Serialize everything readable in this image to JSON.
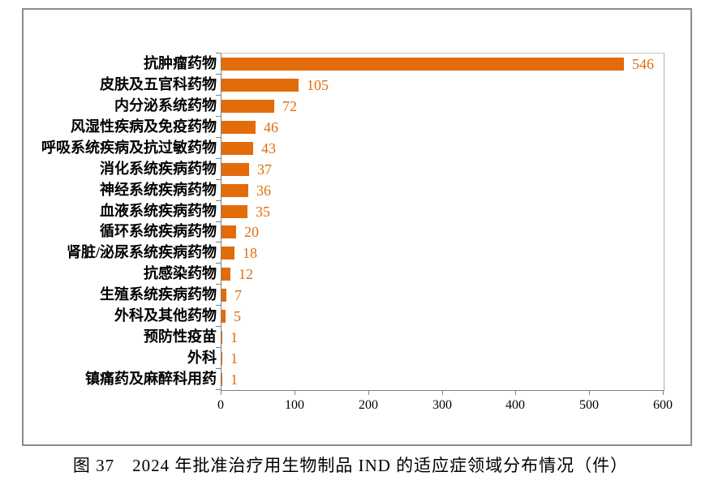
{
  "figure": {
    "caption": "图 37　2024 年批准治疗用生物制品 IND 的适应症领域分布情况（件）"
  },
  "chart_data": {
    "type": "bar",
    "orientation": "horizontal",
    "title": "",
    "xlabel": "",
    "ylabel": "",
    "categories": [
      "抗肿瘤药物",
      "皮肤及五官科药物",
      "内分泌系统药物",
      "风湿性疾病及免疫药物",
      "呼吸系统疾病及抗过敏药物",
      "消化系统疾病药物",
      "神经系统疾病药物",
      "血液系统疾病药物",
      "循环系统疾病药物",
      "肾脏/泌尿系统疾病药物",
      "抗感染药物",
      "生殖系统疾病药物",
      "外科及其他药物",
      "预防性疫苗",
      "外科",
      "镇痛药及麻醉科用药"
    ],
    "values": [
      546,
      105,
      72,
      46,
      43,
      37,
      36,
      35,
      20,
      18,
      12,
      7,
      5,
      1,
      1,
      1
    ],
    "x_ticks": [
      0,
      100,
      200,
      300,
      400,
      500,
      600
    ],
    "xlim": [
      0,
      600
    ],
    "grid": false,
    "legend": false,
    "data_labels": true,
    "bar_color": "#e36c0a",
    "value_label_color": "#e36c0a"
  }
}
